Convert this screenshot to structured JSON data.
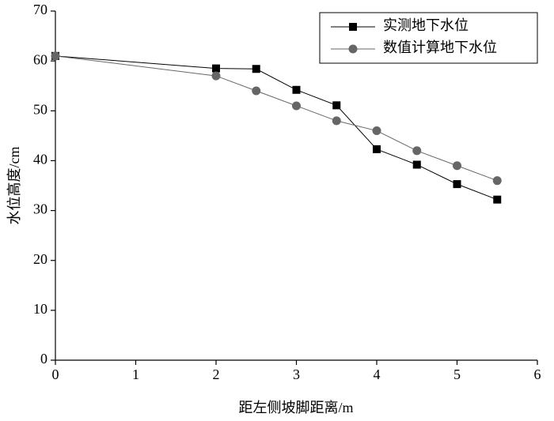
{
  "chart_data": {
    "type": "line",
    "x_label": "距左侧坡脚距离/m",
    "y_label": "水位高度/cm",
    "x": [
      0,
      2,
      2.5,
      3,
      3.5,
      4,
      4.5,
      5,
      5.5
    ],
    "series": [
      {
        "name": "实测地下水位",
        "color": "#000000",
        "marker": "square",
        "values": [
          61,
          58.5,
          58.4,
          54.2,
          51.1,
          42.3,
          39.2,
          35.3,
          32.2
        ]
      },
      {
        "name": "数值计算地下水位",
        "color": "#666666",
        "marker": "circle",
        "values": [
          61,
          57,
          54,
          51,
          48,
          46,
          42,
          39,
          36
        ]
      }
    ],
    "xlim": [
      0,
      6
    ],
    "xticks": [
      0,
      1,
      2,
      3,
      4,
      5,
      6
    ],
    "ylim": [
      0,
      70
    ],
    "yticks": [
      0,
      10,
      20,
      30,
      40,
      50,
      60,
      70
    ],
    "legend": "upper right"
  }
}
